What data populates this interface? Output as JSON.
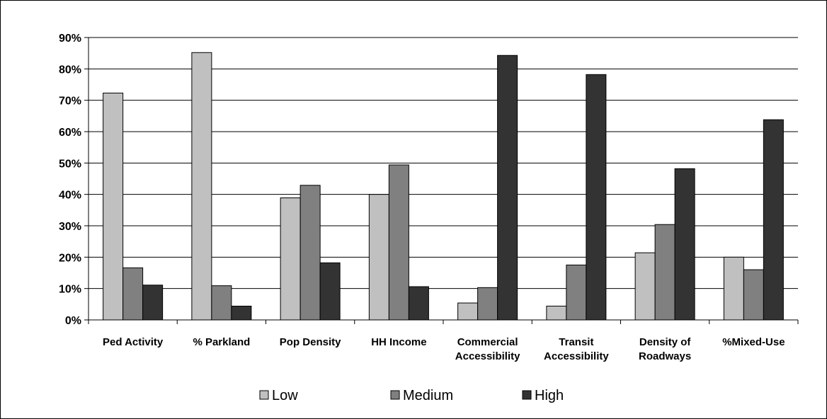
{
  "chart_data": {
    "type": "bar",
    "title": "",
    "xlabel": "",
    "ylabel": "",
    "ylim": [
      0,
      90
    ],
    "y_ticks": [
      "0%",
      "10%",
      "20%",
      "30%",
      "40%",
      "50%",
      "60%",
      "70%",
      "80%",
      "90%"
    ],
    "grid": true,
    "legend_placement": "bottom",
    "categories": [
      [
        "Ped Activity"
      ],
      [
        "% Parkland"
      ],
      [
        "Pop Density"
      ],
      [
        "HH Income"
      ],
      [
        "Commercial",
        "Accessibility"
      ],
      [
        "Transit",
        "Accessibility"
      ],
      [
        "Density of",
        "Roadways"
      ],
      [
        "%Mixed-Use"
      ]
    ],
    "series": [
      {
        "name": "Low",
        "color": "#c0c0c0",
        "values": [
          72.3,
          85.2,
          38.9,
          40.0,
          5.4,
          4.4,
          21.4,
          20.0
        ]
      },
      {
        "name": "Medium",
        "color": "#808080",
        "values": [
          16.6,
          10.9,
          42.9,
          49.4,
          10.3,
          17.5,
          30.4,
          16.0
        ]
      },
      {
        "name": "High",
        "color": "#333333",
        "values": [
          11.1,
          4.4,
          18.2,
          10.6,
          84.3,
          78.2,
          48.2,
          63.8
        ]
      }
    ]
  }
}
